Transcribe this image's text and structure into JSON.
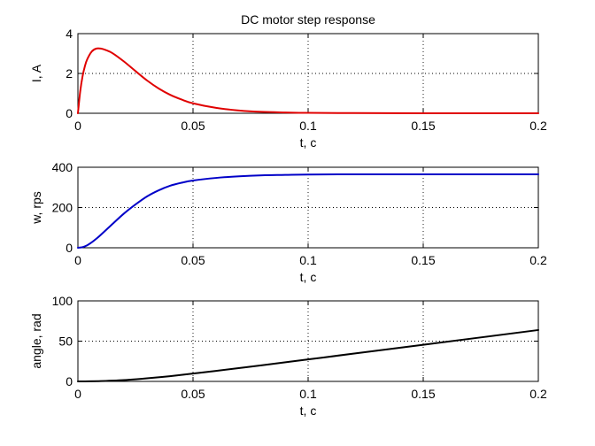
{
  "chart_data": [
    {
      "type": "line",
      "title": "DC motor step response",
      "xlabel": "t, c",
      "ylabel": "I, A",
      "xlim": [
        0,
        0.2
      ],
      "ylim": [
        0,
        4
      ],
      "x_ticks": [
        "0",
        "0.05",
        "0.1",
        "0.15",
        "0.2"
      ],
      "y_ticks": [
        "0",
        "2",
        "4"
      ],
      "grid": true,
      "color": "#e00000",
      "series": [
        {
          "x": [
            0,
            0.001,
            0.002,
            0.003,
            0.004,
            0.006,
            0.008,
            0.01,
            0.012,
            0.015,
            0.02,
            0.025,
            0.03,
            0.035,
            0.04,
            0.045,
            0.05,
            0.06,
            0.07,
            0.08,
            0.09,
            0.1,
            0.12,
            0.15,
            0.2
          ],
          "values": [
            0,
            1.1,
            1.85,
            2.35,
            2.7,
            3.1,
            3.25,
            3.25,
            3.18,
            3.02,
            2.6,
            2.12,
            1.65,
            1.25,
            0.93,
            0.69,
            0.5,
            0.27,
            0.14,
            0.07,
            0.04,
            0.02,
            0.01,
            0,
            0
          ]
        }
      ]
    },
    {
      "type": "line",
      "title": "",
      "xlabel": "t, c",
      "ylabel": "w, rps",
      "xlim": [
        0,
        0.2
      ],
      "ylim": [
        0,
        400
      ],
      "x_ticks": [
        "0",
        "0.05",
        "0.1",
        "0.15",
        "0.2"
      ],
      "y_ticks": [
        "0",
        "200",
        "400"
      ],
      "grid": true,
      "color": "#0000c8",
      "series": [
        {
          "x": [
            0,
            0.002,
            0.004,
            0.006,
            0.008,
            0.01,
            0.015,
            0.02,
            0.025,
            0.03,
            0.035,
            0.04,
            0.045,
            0.05,
            0.06,
            0.07,
            0.08,
            0.09,
            0.1,
            0.12,
            0.15,
            0.2
          ],
          "values": [
            0,
            3,
            12,
            27,
            45,
            65,
            118,
            170,
            215,
            255,
            285,
            308,
            323,
            334,
            347,
            355,
            360,
            362,
            364,
            365,
            365,
            365
          ]
        }
      ]
    },
    {
      "type": "line",
      "title": "",
      "xlabel": "t, c",
      "ylabel": "angle, rad",
      "xlim": [
        0,
        0.2
      ],
      "ylim": [
        0,
        100
      ],
      "x_ticks": [
        "0",
        "0.05",
        "0.1",
        "0.15",
        "0.2"
      ],
      "y_ticks": [
        "0",
        "50",
        "100"
      ],
      "grid": true,
      "color": "#000000",
      "series": [
        {
          "x": [
            0,
            0.005,
            0.01,
            0.015,
            0.02,
            0.025,
            0.03,
            0.04,
            0.05,
            0.06,
            0.08,
            0.1,
            0.12,
            0.15,
            0.2
          ],
          "values": [
            0,
            0.1,
            0.35,
            0.9,
            1.6,
            2.6,
            3.8,
            6.5,
            9.7,
            13.1,
            20.1,
            27.3,
            34.6,
            45.5,
            63.8
          ]
        }
      ]
    }
  ]
}
